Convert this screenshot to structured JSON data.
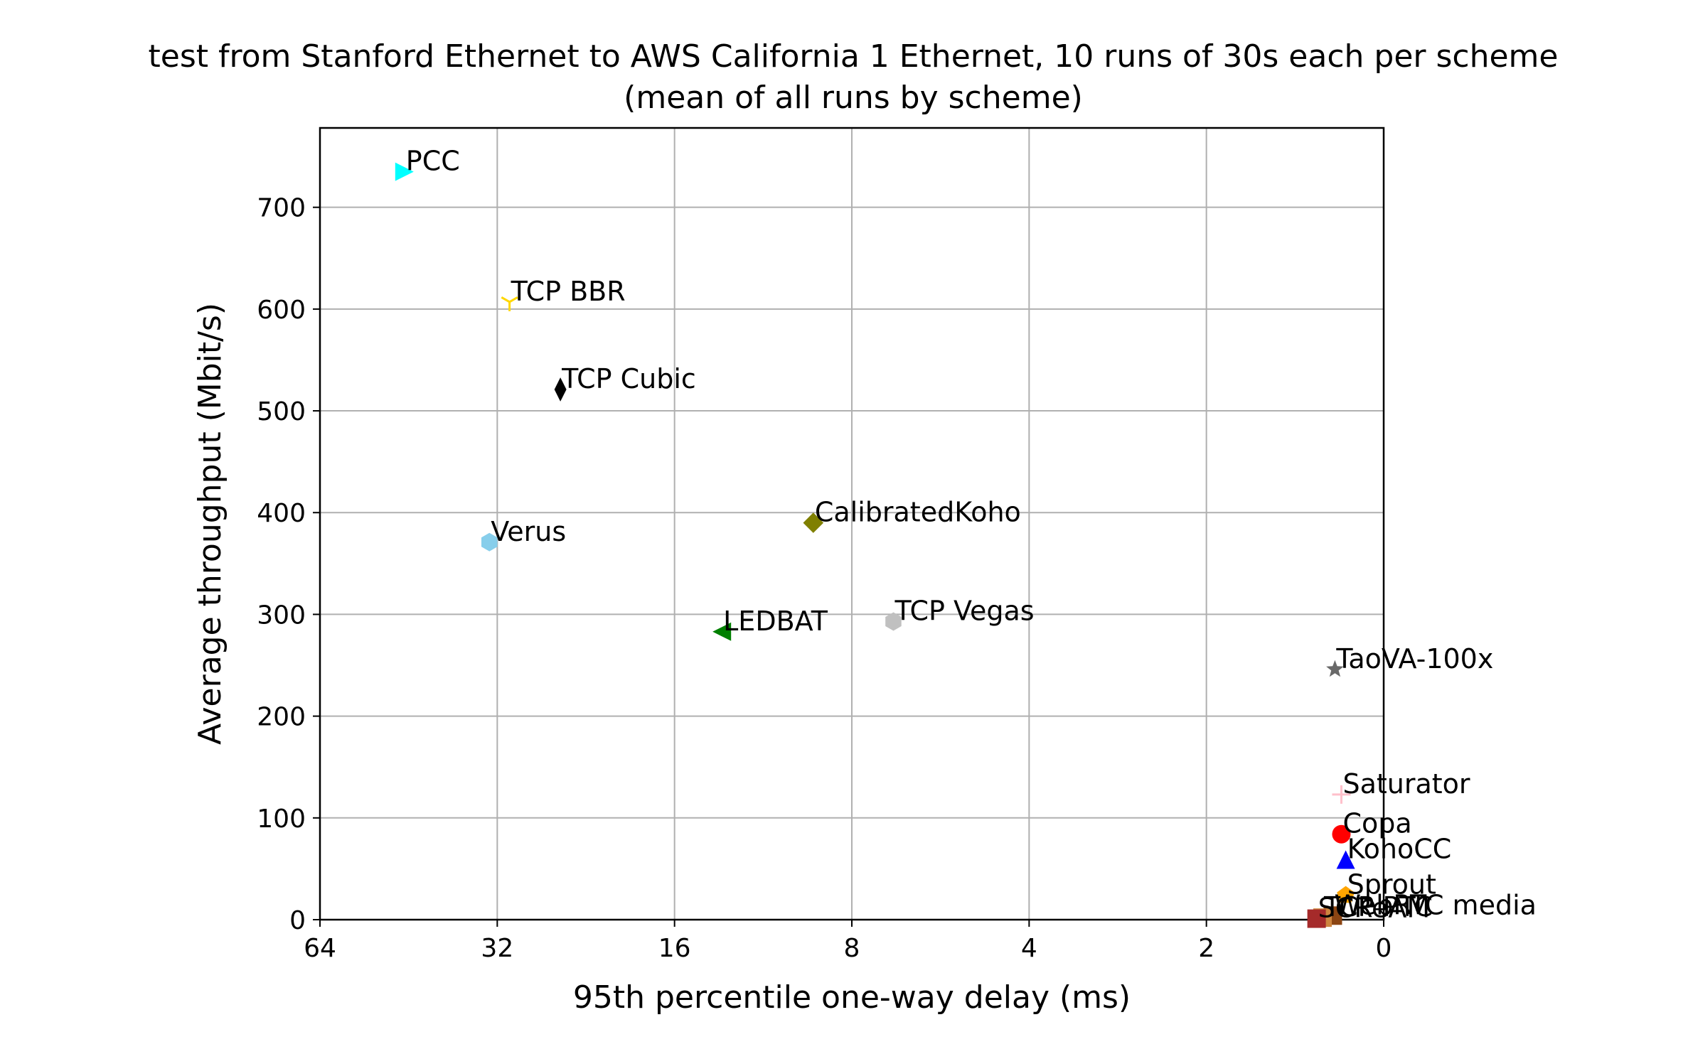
{
  "chart_data": {
    "type": "scatter",
    "title": "test from Stanford Ethernet to AWS California 1 Ethernet, 10 runs of 30s each per scheme",
    "subtitle": "(mean of all runs by scheme)",
    "xlabel": "95th percentile one-way delay (ms)",
    "ylabel": "Average throughput (Mbit/s)",
    "x_scale": "log2, inverted",
    "x_ticks": [
      "64",
      "32",
      "16",
      "8",
      "4",
      "2",
      "0"
    ],
    "y_ticks": [
      "0",
      "100",
      "200",
      "300",
      "400",
      "500",
      "600",
      "700"
    ],
    "ylim": [
      0,
      778
    ],
    "grid": true,
    "points": [
      {
        "name": "PCC",
        "delay_ms": 46.0,
        "throughput": 735,
        "marker": "triangle-right",
        "color": "#00ffff"
      },
      {
        "name": "TCP BBR",
        "delay_ms": 30.5,
        "throughput": 607,
        "marker": "tri-down",
        "color": "#ffd700"
      },
      {
        "name": "TCP Cubic",
        "delay_ms": 25.0,
        "throughput": 521,
        "marker": "thin-diamond",
        "color": "#000000"
      },
      {
        "name": "Verus",
        "delay_ms": 33.0,
        "throughput": 371,
        "marker": "hexagon",
        "color": "#87ceeb"
      },
      {
        "name": "CalibratedKoho",
        "delay_ms": 9.3,
        "throughput": 390,
        "marker": "diamond",
        "color": "#808000"
      },
      {
        "name": "LEDBAT",
        "delay_ms": 13.3,
        "throughput": 283,
        "marker": "triangle-left",
        "color": "#008000"
      },
      {
        "name": "TCP Vegas",
        "delay_ms": 6.8,
        "throughput": 293,
        "marker": "hexagon",
        "color": "#c0c0c0"
      },
      {
        "name": "TaoVA-100x",
        "delay_ms": 1.21,
        "throughput": 246,
        "marker": "star",
        "color": "#696969"
      },
      {
        "name": "Saturator",
        "delay_ms": 1.18,
        "throughput": 123,
        "marker": "plus",
        "color": "#ffc0cb"
      },
      {
        "name": "Copa",
        "delay_ms": 1.18,
        "throughput": 84,
        "marker": "circle",
        "color": "#ff0000"
      },
      {
        "name": "KohoCC",
        "delay_ms": 1.16,
        "throughput": 59,
        "marker": "triangle-up",
        "color": "#0000ff"
      },
      {
        "name": "Sprout",
        "delay_ms": 1.16,
        "throughput": 24,
        "marker": "pentagon",
        "color": "#ffa500"
      },
      {
        "name": "WebRTC media",
        "delay_ms": 1.22,
        "throughput": 4,
        "marker": "square",
        "color": "#8b4513"
      },
      {
        "name": "TCP PTC",
        "delay_ms": 1.27,
        "throughput": 2,
        "marker": "square",
        "color": "#cd853f"
      },
      {
        "name": "SCReAM",
        "delay_ms": 1.3,
        "throughput": 1,
        "marker": "square",
        "color": "#a52a2a"
      }
    ]
  }
}
